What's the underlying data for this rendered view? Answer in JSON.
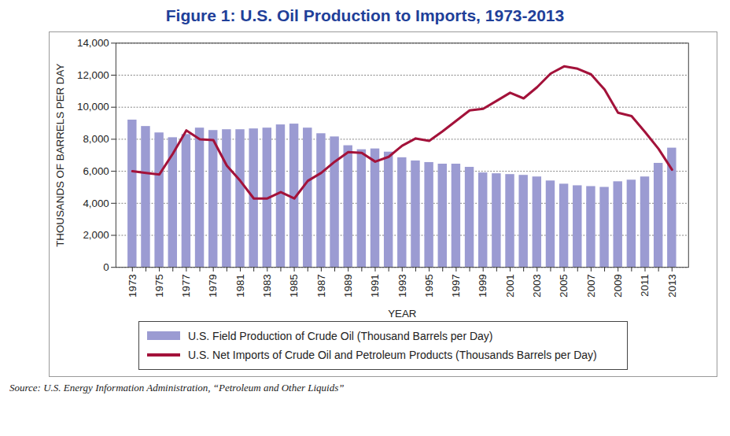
{
  "chart_data": {
    "type": "bar",
    "title": "Figure 1: U.S. Oil Production to Imports, 1973-2013",
    "x_label": "YEAR",
    "y_label": "THOUSANDS OF BARRELS PER DAY",
    "source": "Source: U.S. Energy Information Administration, “Petroleum and Other Liquids”",
    "categories": [
      "1973",
      null,
      "1975",
      null,
      "1977",
      null,
      "1979",
      null,
      "1981",
      null,
      "1983",
      null,
      "1985",
      null,
      "1987",
      null,
      "1989",
      null,
      "1991",
      null,
      "1993",
      null,
      "1995",
      null,
      "1997",
      null,
      "1999",
      null,
      "2001",
      null,
      "2003",
      null,
      "2005",
      null,
      "2007",
      null,
      "2009",
      null,
      "2011",
      null,
      "2013"
    ],
    "series": [
      {
        "name": "U.S. Field Production of Crude Oil (Thousand Barrels per Day)",
        "type": "bar",
        "color": "#9b9bd2",
        "values": [
          9200,
          8800,
          8400,
          8100,
          8300,
          8700,
          8550,
          8600,
          8600,
          8650,
          8700,
          8900,
          8950,
          8700,
          8350,
          8150,
          7600,
          7350,
          7400,
          7200,
          6850,
          6650,
          6550,
          6450,
          6450,
          6250,
          5900,
          5850,
          5800,
          5750,
          5650,
          5400,
          5200,
          5100,
          5050,
          5000,
          5350,
          5450,
          5650,
          6500,
          7450
        ]
      },
      {
        "name": "U.S. Net Imports of Crude Oil and Petroleum Products (Thousands Barrels per Day)",
        "type": "line",
        "color": "#a3123a",
        "values": [
          6000,
          5900,
          5800,
          7100,
          8550,
          8000,
          7950,
          6350,
          5400,
          4300,
          4300,
          4700,
          4300,
          5400,
          5900,
          6600,
          7200,
          7150,
          6600,
          6900,
          7600,
          8050,
          7900,
          8500,
          9150,
          9800,
          9900,
          10400,
          10900,
          10550,
          11250,
          12100,
          12550,
          12400,
          12050,
          11100,
          9650,
          9450,
          8450,
          7400,
          6100
        ]
      }
    ],
    "ylim": [
      0,
      14000
    ],
    "yticks": [
      0,
      {
        "value": 2000,
        "label": "2,000"
      },
      {
        "value": 4000,
        "label": "4,000"
      },
      {
        "value": 6000,
        "label": "6,000"
      },
      {
        "value": 8000,
        "label": "8,000"
      },
      {
        "value": 10000,
        "label": "10,000"
      },
      {
        "value": 12000,
        "label": "12,000"
      },
      {
        "value": 14000,
        "label": "14,000"
      }
    ],
    "grid": true,
    "legend": "bottom"
  }
}
